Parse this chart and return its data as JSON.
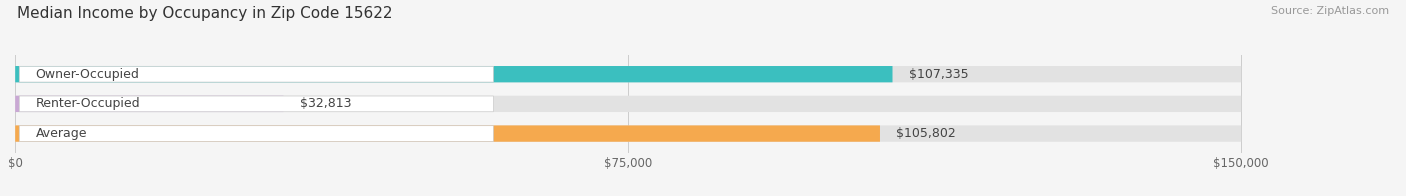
{
  "title": "Median Income by Occupancy in Zip Code 15622",
  "source": "Source: ZipAtlas.com",
  "categories": [
    "Owner-Occupied",
    "Renter-Occupied",
    "Average"
  ],
  "values": [
    107335,
    32813,
    105802
  ],
  "bar_colors": [
    "#3bbfbf",
    "#c9a8d4",
    "#f5a94e"
  ],
  "value_labels": [
    "$107,335",
    "$32,813",
    "$105,802"
  ],
  "xlim": [
    0,
    150000
  ],
  "xticks": [
    0,
    75000,
    150000
  ],
  "xtick_labels": [
    "$0",
    "$75,000",
    "$150,000"
  ],
  "bar_height": 0.55,
  "background_color": "#f5f5f5",
  "bar_bg_color": "#e2e2e2",
  "title_fontsize": 11,
  "source_fontsize": 8,
  "label_fontsize": 9,
  "value_fontsize": 9
}
